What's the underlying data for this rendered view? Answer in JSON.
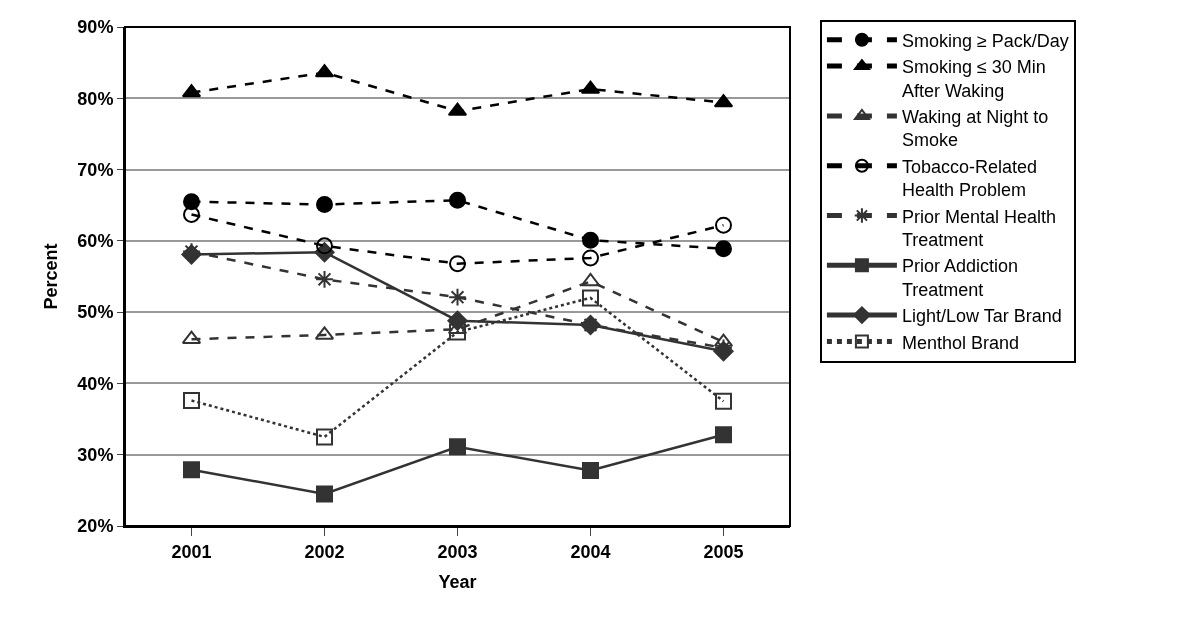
{
  "chart_data": {
    "type": "line",
    "xlabel": "Year",
    "ylabel": "Percent",
    "categories": [
      "2001",
      "2002",
      "2003",
      "2004",
      "2005"
    ],
    "ylim": [
      20,
      90
    ],
    "yticks": [
      {
        "value": 20,
        "label": "20%"
      },
      {
        "value": 30,
        "label": "30%"
      },
      {
        "value": 40,
        "label": "40%"
      },
      {
        "value": 50,
        "label": "50%"
      },
      {
        "value": 60,
        "label": "60%"
      },
      {
        "value": 70,
        "label": "70%"
      },
      {
        "value": 80,
        "label": "80%"
      },
      {
        "value": 90,
        "label": "90%"
      }
    ],
    "grid": "y",
    "legend": "right",
    "series": [
      {
        "name": "Smoking ≥ Pack/Day",
        "color": "#000000",
        "marker": "circle",
        "line_style": "dashed",
        "values": [
          65.5,
          65.1,
          65.7,
          60.1,
          58.9
        ]
      },
      {
        "name": "Smoking ≤ 30 Min After Waking",
        "color": "#000000",
        "marker": "triangle",
        "line_style": "dashed",
        "values": [
          80.8,
          83.6,
          78.2,
          81.3,
          79.4
        ]
      },
      {
        "name": "Waking at Night to Smoke",
        "color": "#333333",
        "marker": "triangle-open",
        "line_style": "dashed",
        "values": [
          46.2,
          46.8,
          47.6,
          54.3,
          45.8
        ]
      },
      {
        "name": "Tobacco-Related Health Problem",
        "color": "#000000",
        "marker": "circle-open",
        "line_style": "dashed",
        "values": [
          63.7,
          59.3,
          56.8,
          57.6,
          62.2
        ]
      },
      {
        "name": "Prior Mental Health Treatment",
        "color": "#333333",
        "marker": "cross",
        "line_style": "dashed",
        "values": [
          58.5,
          54.6,
          52.1,
          48.2,
          45.0
        ]
      },
      {
        "name": "Prior Addiction Treatment",
        "color": "#333333",
        "marker": "square",
        "line_style": "solid",
        "values": [
          27.9,
          24.5,
          31.1,
          27.8,
          32.8
        ]
      },
      {
        "name": "Light/Low Tar Brand",
        "color": "#333333",
        "marker": "diamond",
        "line_style": "solid",
        "values": [
          58.1,
          58.4,
          48.8,
          48.2,
          44.5
        ]
      },
      {
        "name": "Menthol Brand",
        "color": "#333333",
        "marker": "square-open",
        "line_style": "dotted",
        "values": [
          37.6,
          32.5,
          47.2,
          52.0,
          37.5
        ]
      }
    ]
  }
}
